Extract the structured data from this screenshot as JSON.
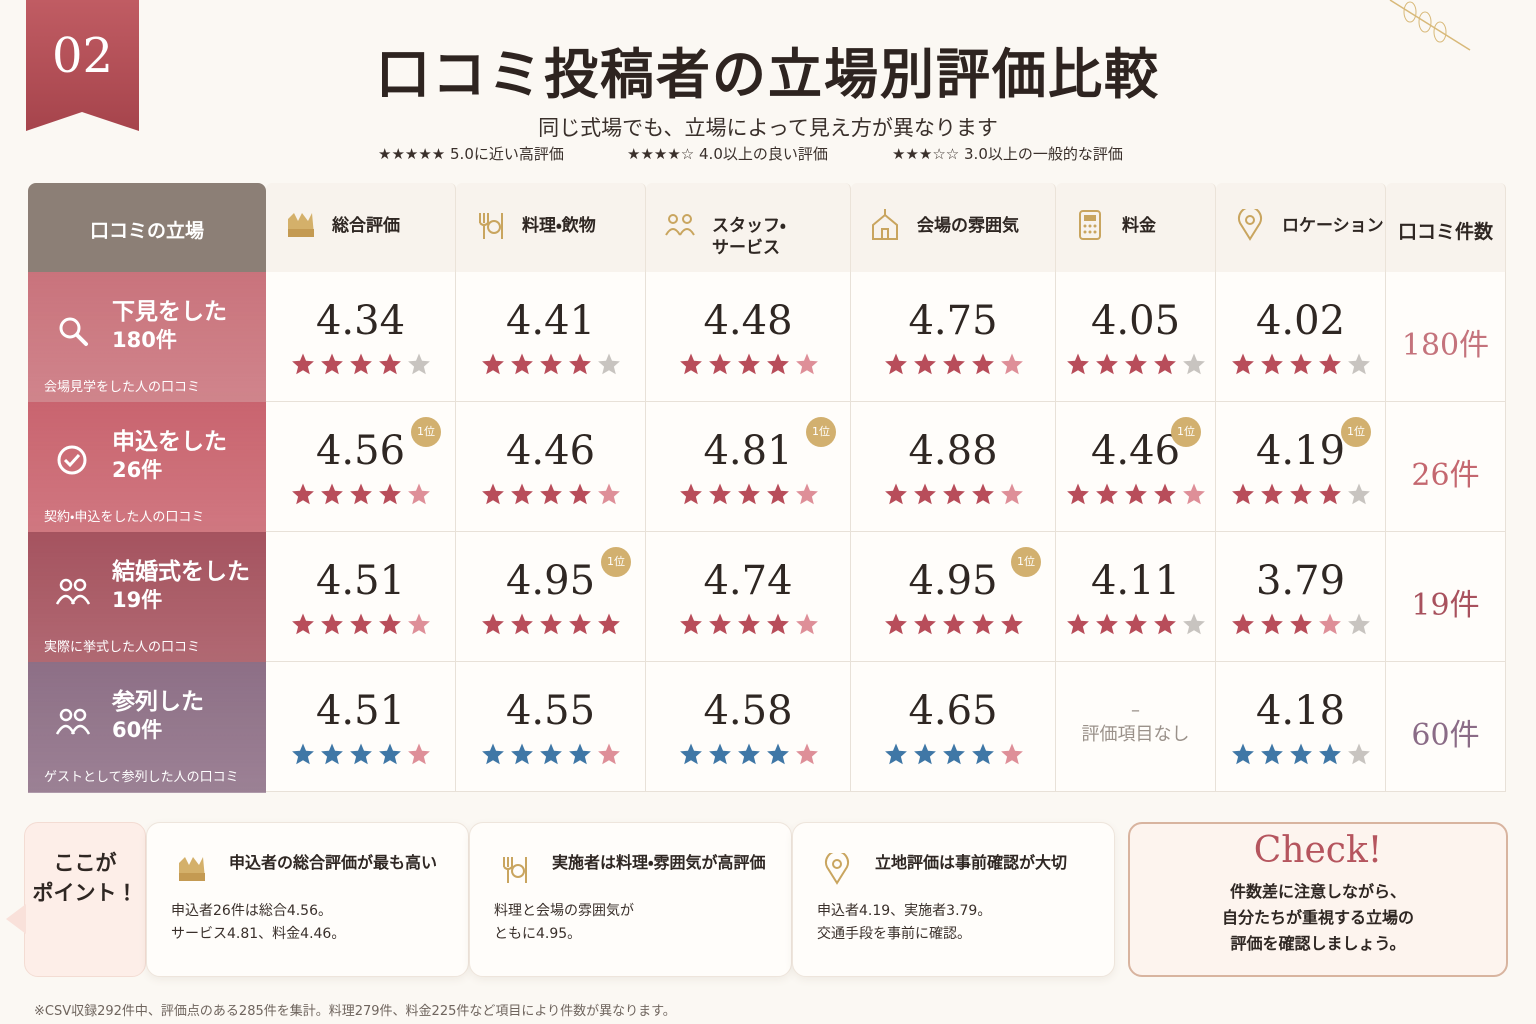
{
  "badge": "02",
  "title": "口コミ投稿者の立場別評価比較",
  "subtitle": "同じ式場でも、立場によって見え方が異なります",
  "legend": [
    "★★★★★ 5.0に近い高評価",
    "★★★★☆ 4.0以上の良い評価",
    "★★★☆☆ 3.0以上の一般的な評価"
  ],
  "table": {
    "corner": "口コミの立場",
    "columns": [
      [
        "総合評価"
      ],
      [
        "料理・飲物"
      ],
      [
        "スタッフ・",
        "サービス"
      ],
      [
        "会場の雰囲気"
      ],
      [
        "料金"
      ],
      [
        "ロケーション"
      ]
    ],
    "count_header": "口コミ件数",
    "rank_label": "1位",
    "na_mark": "–",
    "na_text": "評価項目なし",
    "rows": [
      {
        "name": "下見をした",
        "count": "180件",
        "note": "会場見学をした人の口コミ",
        "color": "#c9737c",
        "count_color": "#c4737c",
        "star_color": "#b84d5a",
        "scores": [
          4.34,
          4.41,
          4.48,
          4.75,
          4.05,
          4.02
        ],
        "top": []
      },
      {
        "name": "申込をした",
        "count": "26件",
        "note": "契約・申込をした人の口コミ",
        "color": "#c9646f",
        "count_color": "#c4676f",
        "star_color": "#b84d5a",
        "scores": [
          4.56,
          4.46,
          4.81,
          4.88,
          4.46,
          4.19
        ],
        "top": [
          0,
          2,
          4,
          5
        ]
      },
      {
        "name": "結婚式をした",
        "count": "19件",
        "note": "実際に挙式した人の口コミ",
        "color": "#a5535f",
        "count_color": "#a8515d",
        "star_color": "#b84d5a",
        "scores": [
          4.51,
          4.95,
          4.74,
          4.95,
          4.11,
          3.79
        ],
        "top": [
          1,
          3
        ]
      },
      {
        "name": "参列した",
        "count": "60件",
        "note": "ゲストとして参列した人の口コミ",
        "color": "#8d6f86",
        "count_color": "#8a6b86",
        "star_color": "#3f77a6",
        "scores": [
          4.51,
          4.55,
          4.58,
          4.65,
          null,
          4.18
        ],
        "top": []
      }
    ]
  },
  "points": {
    "label": [
      "ここが",
      "ポイント！"
    ],
    "cards": [
      {
        "title": "申込者の総合評価が最も高い",
        "body": [
          "申込者26件は総合4.56。",
          "サービス4.81、料金4.46。"
        ]
      },
      {
        "title": "実施者は料理・雰囲気が高評価",
        "body": [
          "料理と会場の雰囲気が",
          "ともに4.95。"
        ]
      },
      {
        "title": "立地評価は事前確認が大切",
        "body": [
          "申込者4.19、実施者3.79。",
          "交通手段を事前に確認。"
        ]
      }
    ],
    "check": {
      "title": "Check!",
      "body": [
        "件数差に注意しながら、",
        "自分たちが重視する立場の",
        "評価を確認しましょう。"
      ]
    }
  },
  "footnote": "※CSV収録292件中、評価点のある285件を集計。料理279件、料金225件など項目により件数が異なります。"
}
